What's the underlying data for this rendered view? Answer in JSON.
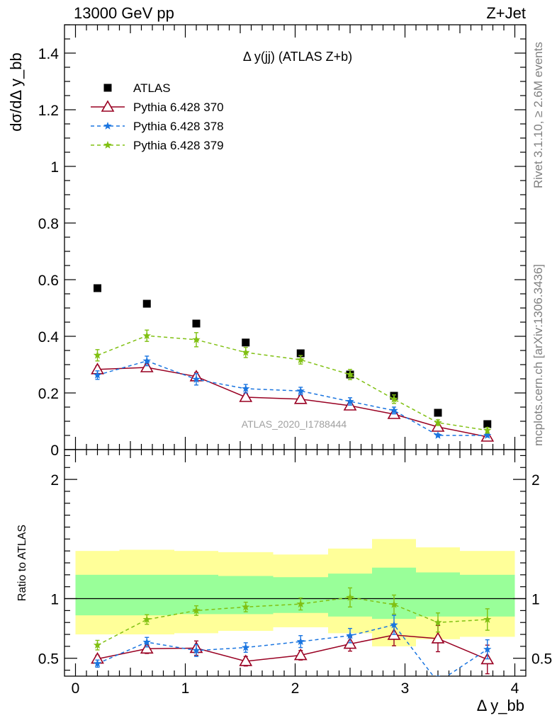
{
  "header": {
    "left": "13000 GeV pp",
    "right": "Z+Jet"
  },
  "side_labels": {
    "rivet": "Rivet 3.1.10, ≥ 2.6M events",
    "mcplots": "mcplots.cern.ch [arXiv:1306.3436]"
  },
  "colors": {
    "atlas": "#000000",
    "p370": "#990022",
    "p378": "#1a75e0",
    "p379": "#80c012",
    "band_yellow": "#ffff99",
    "band_green": "#99ff99"
  },
  "chart_data": [
    {
      "type": "scatter",
      "title": "Δ y(jj) (ATLAS Z+b)",
      "ylabel": "dσ/dΔ y_bb",
      "watermark": "ATLAS_2020_I1788444",
      "xlim": [
        -0.1,
        4.1
      ],
      "ylim": [
        0,
        1.5
      ],
      "yticks": [
        0,
        0.2,
        0.4,
        0.6,
        0.8,
        1,
        1.2,
        1.4
      ],
      "grid": false,
      "legend_position": "top-left",
      "x": [
        0.2,
        0.65,
        1.1,
        1.55,
        2.05,
        2.5,
        2.9,
        3.3,
        3.75
      ],
      "series": [
        {
          "name": "ATLAS",
          "marker": "square",
          "values": [
            0.57,
            0.515,
            0.445,
            0.378,
            0.34,
            0.265,
            0.19,
            0.13,
            0.09
          ]
        },
        {
          "name": "Pythia 6.428 370",
          "marker": "triangle",
          "values": [
            0.283,
            0.29,
            0.258,
            0.185,
            0.178,
            0.155,
            0.125,
            0.08,
            0.045
          ],
          "errors": [
            0.012,
            0.012,
            0.014,
            0.013,
            0.013,
            0.013,
            0.012,
            0.009,
            0.009
          ]
        },
        {
          "name": "Pythia 6.428 378",
          "marker": "star",
          "values": [
            0.263,
            0.313,
            0.248,
            0.215,
            0.207,
            0.17,
            0.138,
            0.05,
            0.05
          ],
          "errors": [
            0.015,
            0.017,
            0.02,
            0.015,
            0.013,
            0.013,
            0.012,
            0.005,
            0.006
          ]
        },
        {
          "name": "Pythia 6.428 379",
          "marker": "star",
          "values": [
            0.333,
            0.402,
            0.388,
            0.343,
            0.317,
            0.265,
            0.178,
            0.095,
            0.068
          ],
          "errors": [
            0.02,
            0.02,
            0.025,
            0.018,
            0.015,
            0.018,
            0.015,
            0.01,
            0.01
          ]
        }
      ]
    },
    {
      "type": "scatter",
      "ylabel": "Ratio to ATLAS",
      "xlabel": "Δ y_bb",
      "xlim": [
        -0.1,
        4.1
      ],
      "ylim": [
        0.35,
        2.25
      ],
      "yticks": [
        0.5,
        1,
        2
      ],
      "xticks": [
        0,
        1,
        2,
        3,
        4
      ],
      "reference_line": 1,
      "grid": false,
      "bin_edges": [
        0,
        0.4,
        0.9,
        1.3,
        1.8,
        2.3,
        2.7,
        3.1,
        3.5,
        4.0
      ],
      "band_outer": [
        [
          0.7,
          1.4
        ],
        [
          0.7,
          1.41
        ],
        [
          0.71,
          1.4
        ],
        [
          0.73,
          1.39
        ],
        [
          0.76,
          1.37
        ],
        [
          0.71,
          1.42
        ],
        [
          0.6,
          1.5
        ],
        [
          0.66,
          1.43
        ],
        [
          0.68,
          1.4
        ]
      ],
      "band_inner": [
        [
          0.86,
          1.2
        ],
        [
          0.86,
          1.2
        ],
        [
          0.87,
          1.2
        ],
        [
          0.87,
          1.19
        ],
        [
          0.88,
          1.18
        ],
        [
          0.85,
          1.21
        ],
        [
          0.83,
          1.26
        ],
        [
          0.85,
          1.22
        ],
        [
          0.85,
          1.2
        ]
      ],
      "x": [
        0.2,
        0.65,
        1.1,
        1.55,
        2.05,
        2.5,
        2.9,
        3.3,
        3.75
      ],
      "series": [
        {
          "name": "Pythia 6.428 370",
          "values": [
            0.495,
            0.58,
            0.585,
            0.475,
            0.525,
            0.62,
            0.695,
            0.665,
            0.49
          ],
          "errors": [
            0.03,
            0.04,
            0.06,
            0.04,
            0.04,
            0.06,
            0.09,
            0.11,
            0.12
          ]
        },
        {
          "name": "Pythia 6.428 378",
          "values": [
            0.455,
            0.635,
            0.565,
            0.59,
            0.64,
            0.69,
            0.78,
            0.3,
            0.575
          ],
          "errors": [
            0.03,
            0.04,
            0.05,
            0.04,
            0.05,
            0.06,
            0.08,
            0.05,
            0.08
          ]
        },
        {
          "name": "Pythia 6.428 379",
          "values": [
            0.61,
            0.825,
            0.9,
            0.93,
            0.955,
            1.01,
            0.95,
            0.8,
            0.825
          ],
          "errors": [
            0.04,
            0.04,
            0.04,
            0.04,
            0.05,
            0.08,
            0.08,
            0.08,
            0.09
          ]
        }
      ]
    }
  ]
}
